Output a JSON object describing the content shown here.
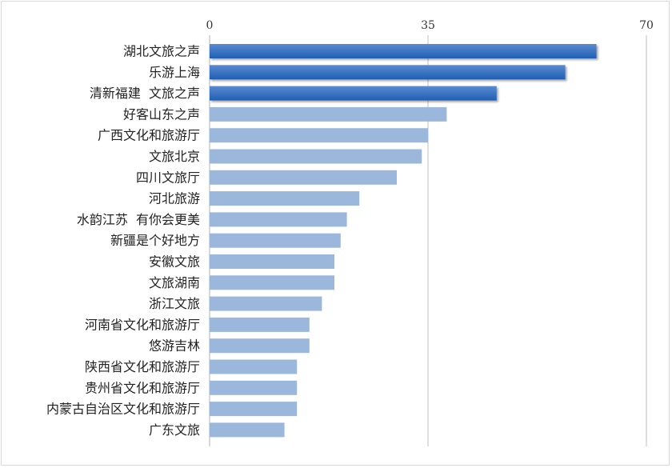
{
  "chart_data": {
    "type": "bar",
    "orientation": "horizontal",
    "title": "",
    "xlabel": "",
    "ylabel": "",
    "xlim": [
      0,
      70
    ],
    "xticks": [
      "0",
      "35",
      "70"
    ],
    "grid": true,
    "legend": "none",
    "categories": [
      "湖北文旅之声",
      "乐游上海",
      "清新福建  文旅之声",
      "好客山东之声",
      "广西文化和旅游厅",
      "文旅北京",
      "四川文旅厅",
      "河北旅游",
      "水韵江苏  有你会更美",
      "新疆是个好地方",
      "安徽文旅",
      "文旅湖南",
      "浙江文旅",
      "河南省文化和旅游厅",
      "悠游吉林",
      "陕西省文化和旅游厅",
      "贵州省文化和旅游厅",
      "内蒙古自治区文化和旅游厅",
      "广东文旅"
    ],
    "values": [
      62,
      57,
      46,
      38,
      35,
      34,
      30,
      24,
      22,
      21,
      20,
      20,
      18,
      16,
      16,
      14,
      14,
      14,
      12
    ],
    "highlight_count": 3,
    "colors": {
      "highlight_start": "#5a8ad0",
      "highlight_end": "#1f5fb4",
      "normal": "#9bb7dc",
      "grid": "#bfbfbf"
    }
  }
}
